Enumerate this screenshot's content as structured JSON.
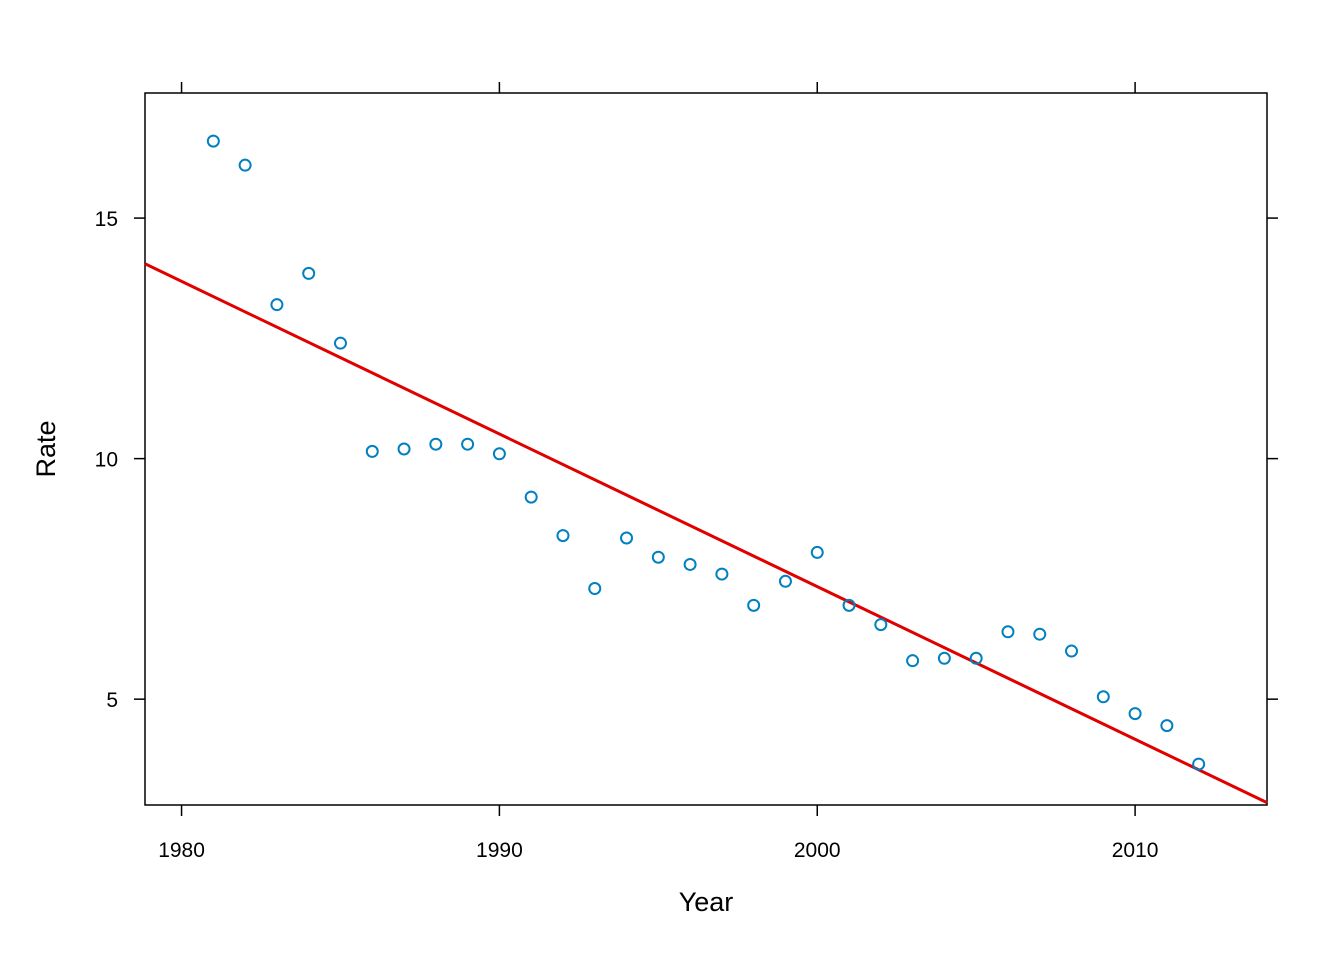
{
  "chart_data": {
    "type": "scatter",
    "xlabel": "Year",
    "ylabel": "Rate",
    "xlim": [
      1978.85,
      2014.15
    ],
    "ylim": [
      2.8,
      17.6
    ],
    "xticks": [
      1980,
      1990,
      2000,
      2010
    ],
    "yticks": [
      5,
      10,
      15
    ],
    "point_color": "#0080c0",
    "line_color": "#e00000",
    "points": [
      {
        "x": 1981,
        "y": 16.6
      },
      {
        "x": 1982,
        "y": 16.1
      },
      {
        "x": 1983,
        "y": 13.2
      },
      {
        "x": 1984,
        "y": 13.85
      },
      {
        "x": 1985,
        "y": 12.4
      },
      {
        "x": 1986,
        "y": 10.15
      },
      {
        "x": 1987,
        "y": 10.2
      },
      {
        "x": 1988,
        "y": 10.3
      },
      {
        "x": 1989,
        "y": 10.3
      },
      {
        "x": 1990,
        "y": 10.1
      },
      {
        "x": 1991,
        "y": 9.2
      },
      {
        "x": 1992,
        "y": 8.4
      },
      {
        "x": 1993,
        "y": 7.3
      },
      {
        "x": 1994,
        "y": 8.35
      },
      {
        "x": 1995,
        "y": 7.95
      },
      {
        "x": 1996,
        "y": 7.8
      },
      {
        "x": 1997,
        "y": 7.6
      },
      {
        "x": 1998,
        "y": 6.95
      },
      {
        "x": 1999,
        "y": 7.45
      },
      {
        "x": 2000,
        "y": 8.05
      },
      {
        "x": 2001,
        "y": 6.95
      },
      {
        "x": 2002,
        "y": 6.55
      },
      {
        "x": 2003,
        "y": 5.8
      },
      {
        "x": 2004,
        "y": 5.85
      },
      {
        "x": 2005,
        "y": 5.85
      },
      {
        "x": 2006,
        "y": 6.4
      },
      {
        "x": 2007,
        "y": 6.35
      },
      {
        "x": 2008,
        "y": 6.0
      },
      {
        "x": 2009,
        "y": 5.05
      },
      {
        "x": 2010,
        "y": 4.7
      },
      {
        "x": 2011,
        "y": 4.45
      },
      {
        "x": 2012,
        "y": 3.65
      }
    ],
    "fit_line": {
      "x": [
        1978.85,
        2014.15
      ],
      "y": [
        14.05,
        2.85
      ]
    }
  }
}
